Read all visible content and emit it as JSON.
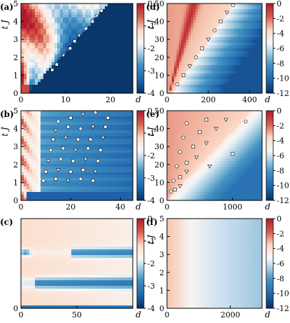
{
  "chart_data": [
    {
      "type": "heatmap",
      "panel": "a",
      "label": "(a)",
      "xlabel": "d",
      "ylabel": "t J",
      "xlim": [
        0,
        25
      ],
      "ylim": [
        0,
        5
      ],
      "xticks": [
        0,
        10,
        20
      ],
      "yticks": [
        0,
        1,
        2,
        3,
        4,
        5
      ],
      "colorbar": {
        "min": -4,
        "max": 0,
        "ticks": [
          0,
          -1,
          -2,
          -3,
          -4
        ]
      },
      "markers": [
        {
          "x": 7,
          "y": 1.3
        },
        {
          "x": 8,
          "y": 1.6
        },
        {
          "x": 9.5,
          "y": 2.1
        },
        {
          "x": 11,
          "y": 2.5
        },
        {
          "x": 12,
          "y": 2.9
        },
        {
          "x": 13,
          "y": 3.2
        },
        {
          "x": 14.5,
          "y": 3.6
        },
        {
          "x": 16,
          "y": 4.0
        },
        {
          "x": 17,
          "y": 4.3
        },
        {
          "x": 18,
          "y": 4.6
        }
      ]
    },
    {
      "type": "heatmap",
      "panel": "b",
      "label": "(b)",
      "xlabel": "d",
      "ylabel": "t J",
      "xlim": [
        0,
        45
      ],
      "ylim": [
        0,
        5
      ],
      "xticks": [
        0,
        20,
        40
      ],
      "yticks": [
        0,
        1,
        2,
        3,
        4,
        5
      ],
      "colorbar": {
        "min": -4,
        "max": 0,
        "ticks": [
          0,
          -1,
          -2,
          -3,
          -4
        ]
      },
      "markers": [
        {
          "x": 15,
          "y": 4.4
        },
        {
          "x": 20,
          "y": 4.6
        },
        {
          "x": 25,
          "y": 4.8
        },
        {
          "x": 30,
          "y": 4.9
        },
        {
          "x": 35,
          "y": 4.6
        },
        {
          "x": 14,
          "y": 3.9
        },
        {
          "x": 19,
          "y": 4.1
        },
        {
          "x": 24,
          "y": 4.0
        },
        {
          "x": 29,
          "y": 4.1
        },
        {
          "x": 34,
          "y": 4.1
        },
        {
          "x": 13,
          "y": 3.4
        },
        {
          "x": 18,
          "y": 3.5
        },
        {
          "x": 23,
          "y": 3.4
        },
        {
          "x": 28,
          "y": 3.4
        },
        {
          "x": 33,
          "y": 3.5
        },
        {
          "x": 12,
          "y": 2.8
        },
        {
          "x": 17,
          "y": 2.9
        },
        {
          "x": 22,
          "y": 2.8
        },
        {
          "x": 27,
          "y": 2.9
        },
        {
          "x": 32,
          "y": 2.8
        },
        {
          "x": 11,
          "y": 2.2
        },
        {
          "x": 16,
          "y": 2.3
        },
        {
          "x": 21,
          "y": 2.2
        },
        {
          "x": 26,
          "y": 2.3
        },
        {
          "x": 31,
          "y": 2.2
        },
        {
          "x": 10,
          "y": 1.6
        },
        {
          "x": 15,
          "y": 1.7
        },
        {
          "x": 20,
          "y": 1.6
        },
        {
          "x": 25,
          "y": 1.7
        },
        {
          "x": 30,
          "y": 1.6
        },
        {
          "x": 9,
          "y": 1.1
        },
        {
          "x": 14,
          "y": 1.2
        },
        {
          "x": 19,
          "y": 1.1
        },
        {
          "x": 24,
          "y": 1.2
        },
        {
          "x": 29,
          "y": 1.1
        }
      ]
    },
    {
      "type": "heatmap",
      "panel": "c",
      "label": "(c)",
      "xlabel": "d",
      "ylabel": "",
      "xlim": [
        0,
        100
      ],
      "ylim": [
        0,
        1
      ],
      "xticks": [
        0,
        50
      ],
      "yticks": [
        0
      ],
      "colorbar": {
        "min": -4,
        "max": 0,
        "ticks": [
          0,
          -1,
          -2,
          -3,
          -4
        ]
      }
    },
    {
      "type": "heatmap",
      "panel": "d",
      "label": "(d)",
      "xlabel": "d",
      "ylabel": "t J",
      "xlim": [
        0,
        460
      ],
      "ylim": [
        0,
        50
      ],
      "xticks": [
        0,
        200,
        400
      ],
      "yticks": [
        0,
        10,
        20,
        30,
        40,
        50
      ],
      "colorbar": {
        "min": -12,
        "max": 0,
        "ticks": [
          0,
          -2,
          -4,
          -6,
          -8,
          -10,
          -12
        ]
      },
      "markers": [
        {
          "x": 50,
          "y": 5
        },
        {
          "x": 80,
          "y": 10
        },
        {
          "x": 110,
          "y": 15
        },
        {
          "x": 140,
          "y": 20
        },
        {
          "x": 170,
          "y": 25
        },
        {
          "x": 200,
          "y": 30
        },
        {
          "x": 230,
          "y": 35
        },
        {
          "x": 260,
          "y": 40
        },
        {
          "x": 290,
          "y": 45
        },
        {
          "x": 320,
          "y": 49
        }
      ]
    },
    {
      "type": "heatmap",
      "panel": "e",
      "label": "(e)",
      "xlabel": "d",
      "ylabel": "t J",
      "xlim": [
        0,
        1450
      ],
      "ylim": [
        0,
        50
      ],
      "xticks": [
        0,
        1000
      ],
      "yticks": [
        0,
        10,
        20,
        30,
        40,
        50
      ],
      "colorbar": {
        "min": -12,
        "max": 0,
        "ticks": [
          0,
          -2,
          -4,
          -6,
          -8,
          -10,
          -12
        ]
      },
      "markers": [
        {
          "x": 60,
          "y": 5
        },
        {
          "x": 120,
          "y": 6
        },
        {
          "x": 200,
          "y": 8
        },
        {
          "x": 100,
          "y": 11
        },
        {
          "x": 200,
          "y": 13
        },
        {
          "x": 300,
          "y": 16
        },
        {
          "x": 150,
          "y": 19
        },
        {
          "x": 300,
          "y": 21
        },
        {
          "x": 450,
          "y": 24
        },
        {
          "x": 200,
          "y": 27
        },
        {
          "x": 400,
          "y": 30
        },
        {
          "x": 600,
          "y": 32
        },
        {
          "x": 250,
          "y": 35
        },
        {
          "x": 500,
          "y": 38
        },
        {
          "x": 750,
          "y": 40
        },
        {
          "x": 300,
          "y": 43
        },
        {
          "x": 600,
          "y": 45
        },
        {
          "x": 900,
          "y": 45
        },
        {
          "x": 1200,
          "y": 44
        },
        {
          "x": 1000,
          "y": 26
        },
        {
          "x": 650,
          "y": 19
        }
      ]
    },
    {
      "type": "heatmap",
      "panel": "f",
      "label": "(f)",
      "xlabel": "d",
      "ylabel": "t J",
      "xlim": [
        0,
        3000
      ],
      "ylim": [
        0,
        5
      ],
      "xticks": [
        0,
        2000
      ],
      "yticks": [
        0,
        1,
        2,
        3,
        4,
        5
      ],
      "colorbar": {
        "min": -12,
        "max": 0,
        "ticks": [
          0,
          -2,
          -4,
          -6,
          -8,
          -10,
          -12
        ]
      }
    }
  ]
}
